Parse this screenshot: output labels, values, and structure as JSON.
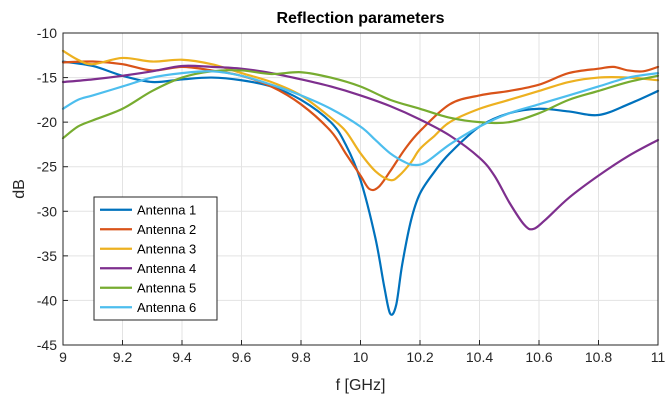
{
  "chart_data": {
    "type": "line",
    "title": "Reflection parameters",
    "xlabel": "f [GHz]",
    "ylabel": "dB",
    "xlim": [
      9,
      11
    ],
    "ylim": [
      -45,
      -10
    ],
    "xticks": [
      "9",
      "9.2",
      "9.4",
      "9.6",
      "9.8",
      "10",
      "10.2",
      "10.4",
      "10.6",
      "10.8",
      "11"
    ],
    "yticks": [
      "-10",
      "-15",
      "-20",
      "-25",
      "-30",
      "-35",
      "-40",
      "-45"
    ],
    "grid": true,
    "legend_position": "bottom-left",
    "series": [
      {
        "name": "Antenna 1",
        "color": "#0072BD",
        "x": [
          9.0,
          9.1,
          9.2,
          9.3,
          9.4,
          9.5,
          9.6,
          9.7,
          9.8,
          9.9,
          9.95,
          10.0,
          10.05,
          10.08,
          10.1,
          10.12,
          10.14,
          10.17,
          10.2,
          10.25,
          10.3,
          10.4,
          10.5,
          10.6,
          10.7,
          10.8,
          10.9,
          11.0
        ],
        "y": [
          -13.2,
          -13.7,
          -14.8,
          -15.5,
          -15.2,
          -15.0,
          -15.3,
          -16.0,
          -17.5,
          -20.0,
          -22.5,
          -26.5,
          -33.0,
          -38.5,
          -41.5,
          -40.5,
          -36.0,
          -31.0,
          -28.0,
          -25.5,
          -23.5,
          -20.5,
          -19.0,
          -18.5,
          -18.8,
          -19.2,
          -18.0,
          -16.5
        ]
      },
      {
        "name": "Antenna 2",
        "color": "#D95319",
        "x": [
          9.0,
          9.1,
          9.2,
          9.3,
          9.4,
          9.5,
          9.6,
          9.7,
          9.8,
          9.9,
          9.95,
          10.0,
          10.03,
          10.06,
          10.1,
          10.15,
          10.2,
          10.3,
          10.4,
          10.5,
          10.6,
          10.7,
          10.8,
          10.85,
          10.9,
          10.95,
          11.0
        ],
        "y": [
          -13.3,
          -13.2,
          -13.5,
          -14.2,
          -13.8,
          -14.2,
          -14.8,
          -16.0,
          -18.0,
          -21.0,
          -23.5,
          -26.0,
          -27.5,
          -27.3,
          -25.5,
          -23.0,
          -21.0,
          -18.0,
          -17.0,
          -16.5,
          -15.8,
          -14.5,
          -14.0,
          -13.8,
          -14.2,
          -14.3,
          -13.8
        ]
      },
      {
        "name": "Antenna 3",
        "color": "#EDB120",
        "x": [
          9.0,
          9.05,
          9.1,
          9.2,
          9.3,
          9.4,
          9.5,
          9.6,
          9.7,
          9.8,
          9.9,
          9.95,
          10.0,
          10.05,
          10.1,
          10.13,
          10.17,
          10.2,
          10.25,
          10.3,
          10.4,
          10.5,
          10.6,
          10.7,
          10.8,
          10.9,
          11.0
        ],
        "y": [
          -12.0,
          -13.0,
          -13.5,
          -12.8,
          -13.2,
          -13.0,
          -13.5,
          -14.5,
          -15.5,
          -17.0,
          -19.5,
          -21.0,
          -23.5,
          -25.5,
          -26.5,
          -26.0,
          -24.5,
          -23.0,
          -21.5,
          -20.0,
          -18.5,
          -17.5,
          -16.5,
          -15.5,
          -15.0,
          -15.0,
          -15.3
        ]
      },
      {
        "name": "Antenna 4",
        "color": "#7E2F8E",
        "x": [
          9.0,
          9.1,
          9.2,
          9.3,
          9.4,
          9.5,
          9.6,
          9.7,
          9.8,
          9.9,
          10.0,
          10.1,
          10.2,
          10.3,
          10.4,
          10.45,
          10.5,
          10.55,
          10.58,
          10.62,
          10.7,
          10.8,
          10.9,
          11.0
        ],
        "y": [
          -15.5,
          -15.2,
          -14.8,
          -14.3,
          -13.7,
          -13.8,
          -14.0,
          -14.5,
          -15.2,
          -16.0,
          -17.0,
          -18.2,
          -19.7,
          -21.5,
          -24.0,
          -26.0,
          -29.0,
          -31.5,
          -32.0,
          -31.0,
          -28.5,
          -26.0,
          -23.8,
          -22.0
        ]
      },
      {
        "name": "Antenna 5",
        "color": "#77AC30",
        "x": [
          9.0,
          9.05,
          9.1,
          9.2,
          9.3,
          9.4,
          9.5,
          9.6,
          9.7,
          9.8,
          9.9,
          10.0,
          10.1,
          10.2,
          10.3,
          10.4,
          10.5,
          10.6,
          10.7,
          10.8,
          10.9,
          11.0
        ],
        "y": [
          -21.8,
          -20.5,
          -19.8,
          -18.5,
          -16.5,
          -15.0,
          -14.3,
          -14.2,
          -14.6,
          -14.4,
          -15.0,
          -16.0,
          -17.5,
          -18.5,
          -19.5,
          -20.0,
          -20.0,
          -19.0,
          -17.5,
          -16.5,
          -15.5,
          -14.8
        ]
      },
      {
        "name": "Antenna 6",
        "color": "#4DBEEE",
        "x": [
          9.0,
          9.05,
          9.1,
          9.2,
          9.3,
          9.4,
          9.5,
          9.6,
          9.7,
          9.8,
          9.9,
          10.0,
          10.05,
          10.1,
          10.15,
          10.18,
          10.22,
          10.3,
          10.4,
          10.5,
          10.6,
          10.7,
          10.8,
          10.9,
          11.0
        ],
        "y": [
          -18.5,
          -17.5,
          -17.0,
          -16.0,
          -15.0,
          -14.5,
          -14.3,
          -14.8,
          -15.8,
          -17.0,
          -18.5,
          -20.5,
          -22.0,
          -23.5,
          -24.5,
          -24.8,
          -24.5,
          -22.5,
          -20.5,
          -19.0,
          -18.0,
          -17.0,
          -16.0,
          -15.0,
          -14.5
        ]
      }
    ]
  }
}
